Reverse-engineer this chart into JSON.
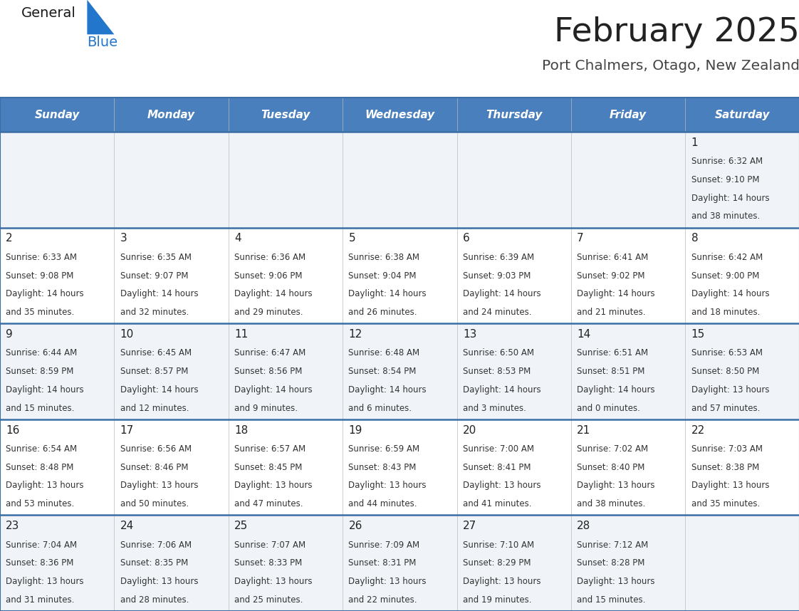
{
  "title": "February 2025",
  "subtitle": "Port Chalmers, Otago, New Zealand",
  "days_of_week": [
    "Sunday",
    "Monday",
    "Tuesday",
    "Wednesday",
    "Thursday",
    "Friday",
    "Saturday"
  ],
  "header_bg": "#4a7fbd",
  "header_text_color": "#ffffff",
  "row_bg_light": "#f0f4f8",
  "row_bg_white": "#ffffff",
  "cell_border_color": "#3a6ea5",
  "day_number_color": "#222222",
  "text_color": "#333333",
  "title_color": "#222222",
  "subtitle_color": "#444444",
  "logo_general_color": "#1a1a1a",
  "logo_blue_color": "#2277cc",
  "calendar": [
    [
      null,
      null,
      null,
      null,
      null,
      null,
      {
        "day": 1,
        "sunrise": "6:32 AM",
        "sunset": "9:10 PM",
        "daylight": "14 hours and 38 minutes."
      }
    ],
    [
      {
        "day": 2,
        "sunrise": "6:33 AM",
        "sunset": "9:08 PM",
        "daylight": "14 hours and 35 minutes."
      },
      {
        "day": 3,
        "sunrise": "6:35 AM",
        "sunset": "9:07 PM",
        "daylight": "14 hours and 32 minutes."
      },
      {
        "day": 4,
        "sunrise": "6:36 AM",
        "sunset": "9:06 PM",
        "daylight": "14 hours and 29 minutes."
      },
      {
        "day": 5,
        "sunrise": "6:38 AM",
        "sunset": "9:04 PM",
        "daylight": "14 hours and 26 minutes."
      },
      {
        "day": 6,
        "sunrise": "6:39 AM",
        "sunset": "9:03 PM",
        "daylight": "14 hours and 24 minutes."
      },
      {
        "day": 7,
        "sunrise": "6:41 AM",
        "sunset": "9:02 PM",
        "daylight": "14 hours and 21 minutes."
      },
      {
        "day": 8,
        "sunrise": "6:42 AM",
        "sunset": "9:00 PM",
        "daylight": "14 hours and 18 minutes."
      }
    ],
    [
      {
        "day": 9,
        "sunrise": "6:44 AM",
        "sunset": "8:59 PM",
        "daylight": "14 hours and 15 minutes."
      },
      {
        "day": 10,
        "sunrise": "6:45 AM",
        "sunset": "8:57 PM",
        "daylight": "14 hours and 12 minutes."
      },
      {
        "day": 11,
        "sunrise": "6:47 AM",
        "sunset": "8:56 PM",
        "daylight": "14 hours and 9 minutes."
      },
      {
        "day": 12,
        "sunrise": "6:48 AM",
        "sunset": "8:54 PM",
        "daylight": "14 hours and 6 minutes."
      },
      {
        "day": 13,
        "sunrise": "6:50 AM",
        "sunset": "8:53 PM",
        "daylight": "14 hours and 3 minutes."
      },
      {
        "day": 14,
        "sunrise": "6:51 AM",
        "sunset": "8:51 PM",
        "daylight": "14 hours and 0 minutes."
      },
      {
        "day": 15,
        "sunrise": "6:53 AM",
        "sunset": "8:50 PM",
        "daylight": "13 hours and 57 minutes."
      }
    ],
    [
      {
        "day": 16,
        "sunrise": "6:54 AM",
        "sunset": "8:48 PM",
        "daylight": "13 hours and 53 minutes."
      },
      {
        "day": 17,
        "sunrise": "6:56 AM",
        "sunset": "8:46 PM",
        "daylight": "13 hours and 50 minutes."
      },
      {
        "day": 18,
        "sunrise": "6:57 AM",
        "sunset": "8:45 PM",
        "daylight": "13 hours and 47 minutes."
      },
      {
        "day": 19,
        "sunrise": "6:59 AM",
        "sunset": "8:43 PM",
        "daylight": "13 hours and 44 minutes."
      },
      {
        "day": 20,
        "sunrise": "7:00 AM",
        "sunset": "8:41 PM",
        "daylight": "13 hours and 41 minutes."
      },
      {
        "day": 21,
        "sunrise": "7:02 AM",
        "sunset": "8:40 PM",
        "daylight": "13 hours and 38 minutes."
      },
      {
        "day": 22,
        "sunrise": "7:03 AM",
        "sunset": "8:38 PM",
        "daylight": "13 hours and 35 minutes."
      }
    ],
    [
      {
        "day": 23,
        "sunrise": "7:04 AM",
        "sunset": "8:36 PM",
        "daylight": "13 hours and 31 minutes."
      },
      {
        "day": 24,
        "sunrise": "7:06 AM",
        "sunset": "8:35 PM",
        "daylight": "13 hours and 28 minutes."
      },
      {
        "day": 25,
        "sunrise": "7:07 AM",
        "sunset": "8:33 PM",
        "daylight": "13 hours and 25 minutes."
      },
      {
        "day": 26,
        "sunrise": "7:09 AM",
        "sunset": "8:31 PM",
        "daylight": "13 hours and 22 minutes."
      },
      {
        "day": 27,
        "sunrise": "7:10 AM",
        "sunset": "8:29 PM",
        "daylight": "13 hours and 19 minutes."
      },
      {
        "day": 28,
        "sunrise": "7:12 AM",
        "sunset": "8:28 PM",
        "daylight": "13 hours and 15 minutes."
      },
      null
    ]
  ]
}
